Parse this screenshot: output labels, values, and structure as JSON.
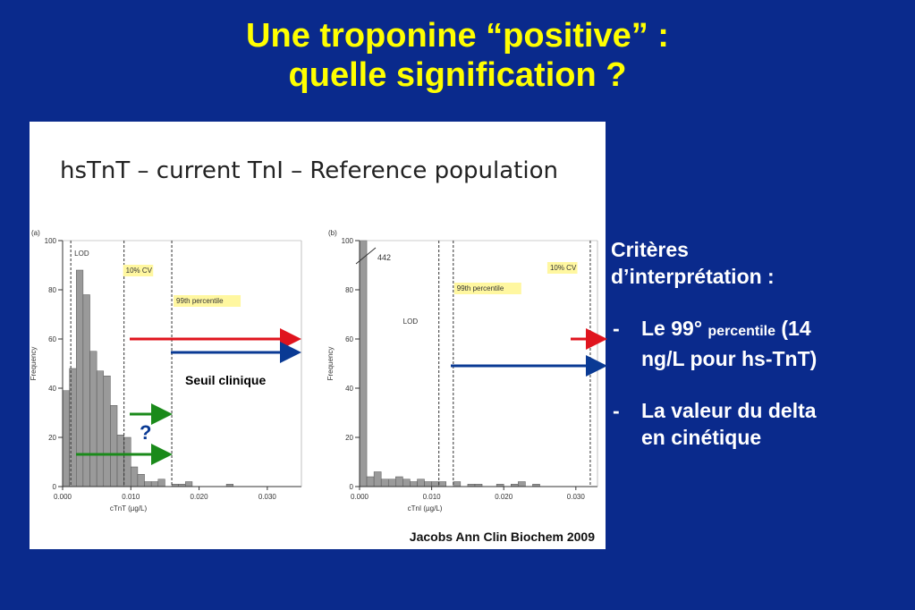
{
  "slide": {
    "title_line1": "Une troponine “positive” :",
    "title_line2": "quelle signification ?"
  },
  "panel": {
    "title": "hsTnT – current TnI – Reference population",
    "citation": "Jacobs Ann Clin Biochem 2009",
    "seuil_label": "Seuil clinique",
    "question_mark": "?"
  },
  "right_text": {
    "heading_line1": "Critères",
    "heading_line2": "d’interprétation :",
    "bullet1_a": "Le 99°",
    "bullet1_small": "percentile",
    "bullet1_b": "(14",
    "bullet1_line2": "ng/L pour hs-TnT)",
    "bullet2_line1": "La valeur du delta",
    "bullet2_line2": "en cinétique",
    "dash": "-"
  },
  "colors": {
    "background": "#0a2a8c",
    "title": "#ffff00",
    "arrow_red": "#e0141e",
    "arrow_blue": "#0a3a94",
    "arrow_green": "#1a8a1a",
    "bar": "#9a9a9a",
    "label_box": "#fff7a0"
  },
  "chart_data": [
    {
      "type": "bar",
      "panel_label": "(a)",
      "xlabel": "cTnT (µg/L)",
      "ylabel": "Frequency",
      "xlim": [
        0.0,
        0.035
      ],
      "ylim": [
        0,
        100
      ],
      "xticks": [
        0.0,
        0.01,
        0.02,
        0.03
      ],
      "xtick_labels": [
        "0.000",
        "0.010",
        "0.020",
        "0.030"
      ],
      "yticks": [
        0,
        20,
        40,
        60,
        80,
        100
      ],
      "bin_width": 0.001,
      "bin_starts": [
        0.0,
        0.001,
        0.002,
        0.003,
        0.004,
        0.005,
        0.006,
        0.007,
        0.008,
        0.009,
        0.01,
        0.011,
        0.012,
        0.013,
        0.014,
        0.016,
        0.017,
        0.018,
        0.024
      ],
      "values": [
        39,
        48,
        88,
        78,
        55,
        47,
        45,
        33,
        21,
        20,
        8,
        5,
        2,
        2,
        3,
        1,
        1,
        2,
        1
      ],
      "vlines": [
        {
          "x": 0.0012,
          "label": "LOD",
          "boxed": false
        },
        {
          "x": 0.009,
          "label": "10% CV",
          "boxed": true
        },
        {
          "x": 0.016,
          "label": "99th percentile",
          "boxed": true
        }
      ]
    },
    {
      "type": "bar",
      "panel_label": "(b)",
      "xlabel": "cTnI (µg/L)",
      "ylabel": "Frequency",
      "xlim": [
        0.0,
        0.033
      ],
      "ylim": [
        0,
        100
      ],
      "xticks": [
        0.0,
        0.01,
        0.02,
        0.03
      ],
      "xtick_labels": [
        "0.000",
        "0.010",
        "0.020",
        "0.030"
      ],
      "yticks": [
        0,
        20,
        40,
        60,
        80,
        100
      ],
      "bin_width": 0.001,
      "bin_starts": [
        0.0,
        0.001,
        0.002,
        0.003,
        0.004,
        0.005,
        0.006,
        0.007,
        0.008,
        0.009,
        0.01,
        0.011,
        0.013,
        0.015,
        0.016,
        0.019,
        0.021,
        0.022,
        0.024
      ],
      "values": [
        442,
        4,
        6,
        3,
        3,
        4,
        3,
        2,
        3,
        2,
        2,
        2,
        2,
        1,
        1,
        1,
        1,
        2,
        1
      ],
      "truncated_label": "442",
      "vlines": [
        {
          "x": 0.011,
          "label": "LOD",
          "boxed": false
        },
        {
          "x": 0.013,
          "label": "99th percentile",
          "boxed": true
        },
        {
          "x": 0.032,
          "label": "10% CV",
          "boxed": true
        }
      ]
    }
  ]
}
